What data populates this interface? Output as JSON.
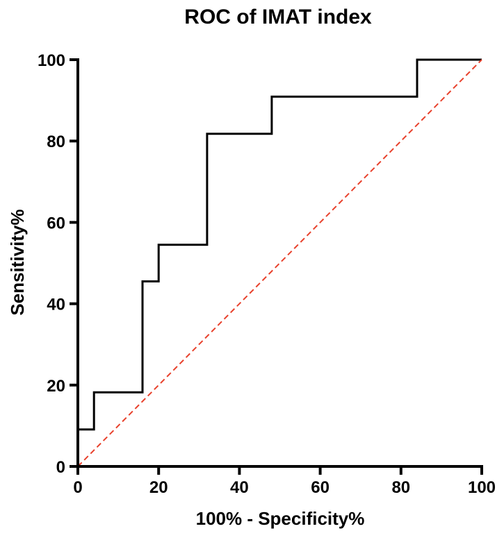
{
  "chart_data": {
    "type": "line",
    "title": "ROC of IMAT index",
    "xlabel": "100% - Specificity%",
    "ylabel": "Sensitivity%",
    "xlim": [
      0,
      100
    ],
    "ylim": [
      0,
      100
    ],
    "x_ticks": [
      0,
      20,
      40,
      60,
      80,
      100
    ],
    "y_ticks": [
      0,
      20,
      40,
      60,
      80,
      100
    ],
    "grid": false,
    "series": [
      {
        "style": "step",
        "color": "#000000",
        "points": [
          [
            0,
            0
          ],
          [
            0,
            9.1
          ],
          [
            4,
            9.1
          ],
          [
            4,
            18.2
          ],
          [
            16,
            18.2
          ],
          [
            16,
            45.5
          ],
          [
            20,
            45.5
          ],
          [
            20,
            54.5
          ],
          [
            32,
            54.5
          ],
          [
            32,
            81.8
          ],
          [
            48,
            81.8
          ],
          [
            48,
            90.9
          ],
          [
            84,
            90.9
          ],
          [
            84,
            100
          ],
          [
            100,
            100
          ]
        ]
      },
      {
        "style": "dashed",
        "color": "#e8412c",
        "points": [
          [
            0,
            0
          ],
          [
            100,
            100
          ]
        ]
      }
    ]
  }
}
